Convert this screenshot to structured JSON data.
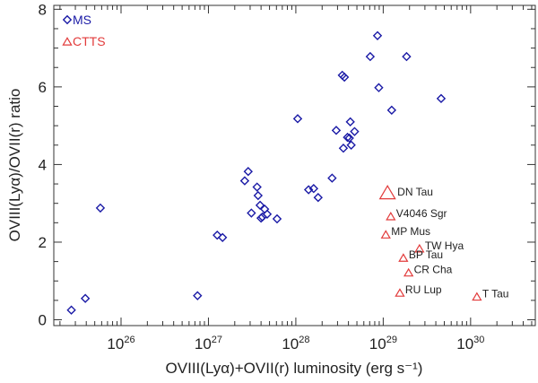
{
  "chart_data": {
    "type": "scatter",
    "xlabel": "OVIII(Lyα)+OVII(r) luminosity (erg s⁻¹)",
    "ylabel": "OVIII(Lyα)/OVII(r) ratio",
    "xscale": "log",
    "xlim": [
      1.7e+25,
      5.5e+30
    ],
    "ylim": [
      -0.15,
      8.1
    ],
    "x_ticks": [
      {
        "value": 1e+26,
        "base": "10",
        "exp": "26"
      },
      {
        "value": 1e+27,
        "base": "10",
        "exp": "27"
      },
      {
        "value": 1e+28,
        "base": "10",
        "exp": "28"
      },
      {
        "value": 1e+29,
        "base": "10",
        "exp": "29"
      },
      {
        "value": 1e+30,
        "base": "10",
        "exp": "30"
      }
    ],
    "y_ticks": [
      0,
      2,
      4,
      6,
      8
    ],
    "legend_position": "top-left",
    "series": [
      {
        "name": "MS",
        "marker": "diamond",
        "color": "#1a1aa6",
        "points": [
          {
            "x": 2.7e+25,
            "y": 0.25
          },
          {
            "x": 3.9e+25,
            "y": 0.55
          },
          {
            "x": 5.8e+25,
            "y": 2.88
          },
          {
            "x": 7.5e+26,
            "y": 0.62
          },
          {
            "x": 1.26e+27,
            "y": 2.18
          },
          {
            "x": 1.45e+27,
            "y": 2.12
          },
          {
            "x": 2.6e+27,
            "y": 3.58
          },
          {
            "x": 2.85e+27,
            "y": 3.82
          },
          {
            "x": 3.1e+27,
            "y": 2.75
          },
          {
            "x": 3.6e+27,
            "y": 3.42
          },
          {
            "x": 3.7e+27,
            "y": 3.2
          },
          {
            "x": 3.9e+27,
            "y": 2.95
          },
          {
            "x": 4e+27,
            "y": 2.62
          },
          {
            "x": 4.15e+27,
            "y": 2.65
          },
          {
            "x": 4.4e+27,
            "y": 2.85
          },
          {
            "x": 4.7e+27,
            "y": 2.72
          },
          {
            "x": 6.1e+27,
            "y": 2.6
          },
          {
            "x": 1.05e+28,
            "y": 5.18
          },
          {
            "x": 1.4e+28,
            "y": 3.35
          },
          {
            "x": 1.6e+28,
            "y": 3.38
          },
          {
            "x": 1.8e+28,
            "y": 3.15
          },
          {
            "x": 2.6e+28,
            "y": 3.65
          },
          {
            "x": 2.9e+28,
            "y": 4.88
          },
          {
            "x": 3.4e+28,
            "y": 6.3
          },
          {
            "x": 3.6e+28,
            "y": 6.25
          },
          {
            "x": 3.5e+28,
            "y": 4.42
          },
          {
            "x": 3.9e+28,
            "y": 4.7
          },
          {
            "x": 4.1e+28,
            "y": 4.68
          },
          {
            "x": 4.2e+28,
            "y": 5.1
          },
          {
            "x": 4.3e+28,
            "y": 4.5
          },
          {
            "x": 4.7e+28,
            "y": 4.85
          },
          {
            "x": 7.1e+28,
            "y": 6.78
          },
          {
            "x": 8.6e+28,
            "y": 7.32
          },
          {
            "x": 8.9e+28,
            "y": 5.98
          },
          {
            "x": 1.25e+29,
            "y": 5.4
          },
          {
            "x": 1.85e+29,
            "y": 6.78
          },
          {
            "x": 4.6e+29,
            "y": 5.7
          }
        ]
      },
      {
        "name": "CTTS",
        "marker": "triangle",
        "color": "#e23b3b",
        "points": [
          {
            "x": 1.12e+29,
            "y": 3.25,
            "label": "DN Tau",
            "big": true
          },
          {
            "x": 1.22e+29,
            "y": 2.65,
            "label": "V4046 Sgr"
          },
          {
            "x": 1.07e+29,
            "y": 2.18,
            "label": "MP Mus"
          },
          {
            "x": 2.6e+29,
            "y": 1.82,
            "label": "TW Hya"
          },
          {
            "x": 1.7e+29,
            "y": 1.58,
            "label": "BP Tau"
          },
          {
            "x": 1.95e+29,
            "y": 1.2,
            "label": "CR Cha"
          },
          {
            "x": 1.55e+29,
            "y": 0.68,
            "label": "RU Lup"
          },
          {
            "x": 1.18e+30,
            "y": 0.58,
            "label": "T Tau"
          }
        ]
      }
    ]
  }
}
